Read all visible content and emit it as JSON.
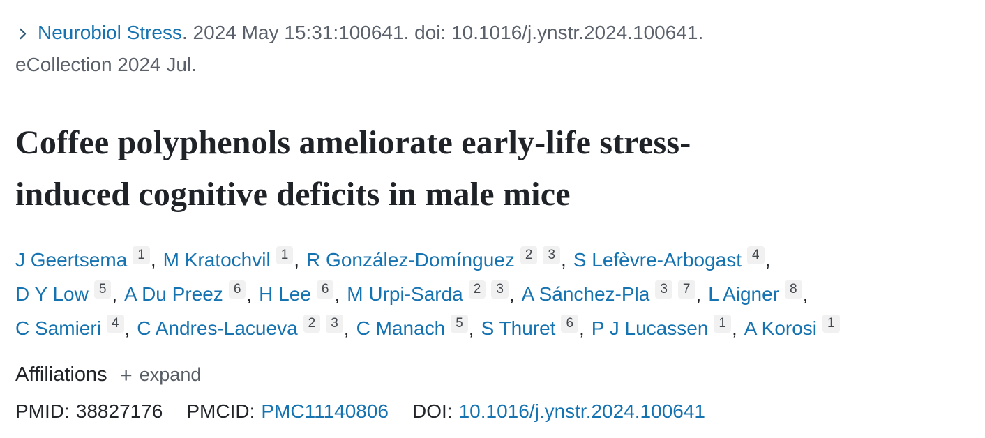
{
  "colors": {
    "link_blue": "#1673b1",
    "citation_gray": "#5b616b",
    "text_dark": "#212529",
    "badge_background": "#f1f1f2",
    "chevron_blue": "#2e5a77"
  },
  "icons": {
    "journal_toggle": "chevron-right",
    "affiliations_expand": "plus"
  },
  "citation": {
    "journal": "Neurobiol Stress",
    "details": ". 2024 May 15:31:100641. doi: 10.1016/j.ynstr.2024.100641.",
    "ecollection": "eCollection 2024 Jul."
  },
  "title": {
    "full": "Coffee polyphenols ameliorate early-life stress-induced cognitive deficits in male mice",
    "lines": [
      "Coffee polyphenols ameliorate early-life stress-",
      "induced cognitive deficits in male mice"
    ]
  },
  "authors": {
    "lines": [
      [
        {
          "name": "J Geertsema",
          "sups": [
            "1"
          ],
          "sep": ","
        },
        {
          "name": "M Kratochvil",
          "sups": [
            "1"
          ],
          "sep": ","
        },
        {
          "name": "R González-Domínguez",
          "sups": [
            "2",
            "3"
          ],
          "sep": ","
        },
        {
          "name": "S Lefèvre-Arbogast",
          "sups": [
            "4"
          ],
          "sep": ","
        }
      ],
      [
        {
          "name": "D Y Low",
          "sups": [
            "5"
          ],
          "sep": ","
        },
        {
          "name": "A Du Preez",
          "sups": [
            "6"
          ],
          "sep": ","
        },
        {
          "name": "H Lee",
          "sups": [
            "6"
          ],
          "sep": ","
        },
        {
          "name": "M Urpi-Sarda",
          "sups": [
            "2",
            "3"
          ],
          "sep": ","
        },
        {
          "name": "A Sánchez-Pla",
          "sups": [
            "3",
            "7"
          ],
          "sep": ","
        },
        {
          "name": "L Aigner",
          "sups": [
            "8"
          ],
          "sep": ","
        }
      ],
      [
        {
          "name": "C Samieri",
          "sups": [
            "4"
          ],
          "sep": ","
        },
        {
          "name": "C Andres-Lacueva",
          "sups": [
            "2",
            "3"
          ],
          "sep": ","
        },
        {
          "name": "C Manach",
          "sups": [
            "5"
          ],
          "sep": ","
        },
        {
          "name": "S Thuret",
          "sups": [
            "6"
          ],
          "sep": ","
        },
        {
          "name": "P J Lucassen",
          "sups": [
            "1"
          ],
          "sep": ","
        },
        {
          "name": "A Korosi",
          "sups": [
            "1"
          ],
          "sep": ""
        }
      ]
    ]
  },
  "affiliations": {
    "label": "Affiliations",
    "expand_icon": "+",
    "expand_label": "expand"
  },
  "identifiers": {
    "pmid_label": "PMID:",
    "pmid": "38827176",
    "pmcid_label": "PMCID:",
    "pmcid": "PMC11140806",
    "doi_label": "DOI:",
    "doi": "10.1016/j.ynstr.2024.100641"
  }
}
